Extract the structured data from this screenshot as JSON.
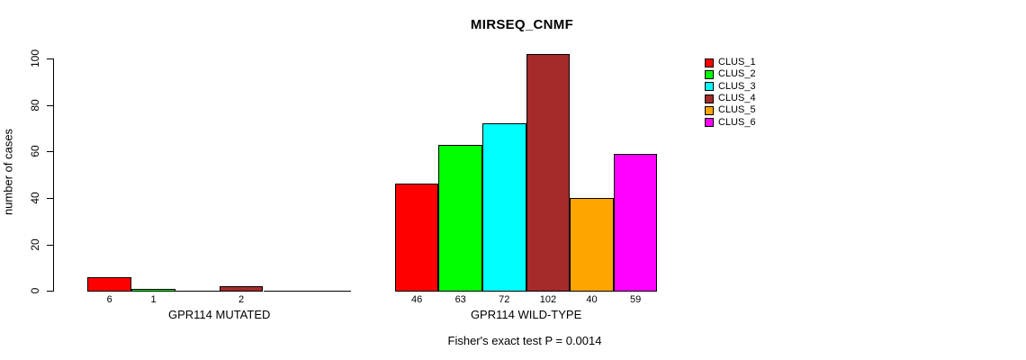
{
  "chart_data": {
    "type": "bar",
    "title": "MIRSEQ_CNMF",
    "ylabel": "number of cases",
    "ylim": [
      0,
      110
    ],
    "yticks": [
      0,
      20,
      40,
      60,
      80,
      100
    ],
    "grid": false,
    "legend_position": "right-outside",
    "legend": [
      {
        "label": "CLUS_1",
        "color": "#ff0000"
      },
      {
        "label": "CLUS_2",
        "color": "#00ff00"
      },
      {
        "label": "CLUS_3",
        "color": "#00ffff"
      },
      {
        "label": "CLUS_4",
        "color": "#a52a2a"
      },
      {
        "label": "CLUS_5",
        "color": "#ffa500"
      },
      {
        "label": "CLUS_6",
        "color": "#ff00ff"
      }
    ],
    "groups": [
      {
        "xlabel": "GPR114 MUTATED",
        "values": [
          6,
          1,
          0,
          2,
          0,
          0
        ]
      },
      {
        "xlabel": "GPR114 WILD-TYPE",
        "values": [
          46,
          63,
          72,
          102,
          40,
          59
        ]
      }
    ],
    "footnote": "Fisher's exact test P = 0.0014"
  }
}
